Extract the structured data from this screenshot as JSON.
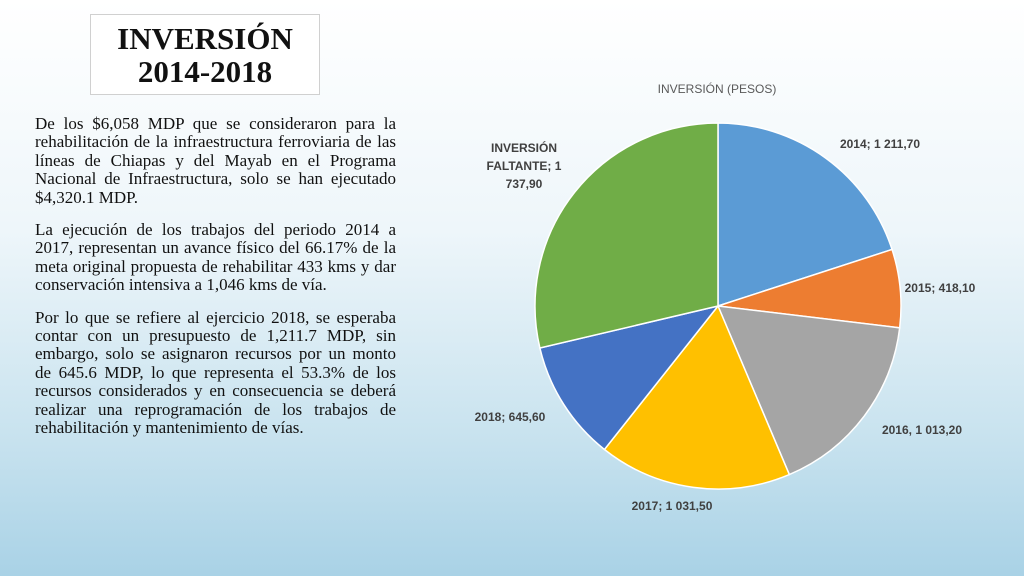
{
  "title": {
    "line1": "INVERSIÓN",
    "line2": "2014-2018"
  },
  "paragraphs": [
    "De los $6,058 MDP que se consideraron para la rehabilitación de la infraestructura ferroviaria de las líneas de Chiapas y del Mayab en el Programa Nacional de Infraestructura, solo se han ejecutado $4,320.1 MDP.",
    "La ejecución de los trabajos del periodo 2014 a 2017, representan un avance físico del 66.17% de la meta original propuesta de rehabilitar 433 kms y dar conservación intensiva a 1,046 kms de vía.",
    "Por lo que se refiere al ejercicio 2018, se esperaba contar con un presupuesto de 1,211.7 MDP, sin embargo, solo se asignaron recursos por un monto de 645.6 MDP, lo que representa el 53.3% de los recursos considerados y en consecuencia se deberá realizar una reprogramación de los trabajos de rehabilitación y mantenimiento de vías."
  ],
  "chart_data": {
    "type": "pie",
    "title": "INVERSIÓN (PESOS)",
    "slices": [
      {
        "category": "2014",
        "value": 1211.7,
        "label": "2014;  1 211,70",
        "color": "#5B9BD5"
      },
      {
        "category": "2015",
        "value": 418.1,
        "label": "2015;  418,10",
        "color": "#ED7D31"
      },
      {
        "category": "2016",
        "value": 1013.2,
        "label": "2016,  1 013,20",
        "color": "#A5A5A5"
      },
      {
        "category": "2017",
        "value": 1031.5,
        "label": "2017;  1 031,50",
        "color": "#FFC000"
      },
      {
        "category": "2018",
        "value": 645.6,
        "label": "2018;  645,60",
        "color": "#4472C4"
      },
      {
        "category": "INVERSIÓN FALTANTE",
        "value": 1737.9,
        "label_lines": [
          "INVERSIÓN",
          "FALTANTE;  1",
          "737,90"
        ],
        "color": "#70AD47"
      }
    ]
  }
}
